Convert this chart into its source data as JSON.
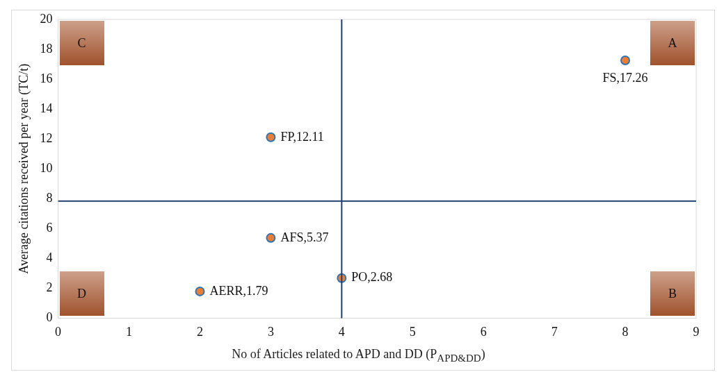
{
  "chart_data": {
    "type": "scatter",
    "xlabel": "No of Articles related to APD and DD (P$_{APD&DD}$)",
    "ylabel": "Average citations received per year (TC/t)",
    "x": [
      2,
      3,
      3,
      4,
      8
    ],
    "values": [
      1.79,
      5.37,
      12.11,
      2.68,
      17.26
    ],
    "value_labels": [
      "AERR,1.79",
      "AFS,5.37",
      "FP,12.11",
      "PO,2.68",
      "FS,17.26"
    ],
    "color": "#ed7d31",
    "marker": "circle",
    "xlim": [
      0,
      9
    ],
    "xticks": [
      0,
      1,
      2,
      3,
      4,
      5,
      6,
      7,
      8,
      9
    ],
    "ylim": [
      0,
      20
    ],
    "yticks": [
      0,
      2,
      4,
      6,
      8,
      10,
      12,
      14,
      16,
      18,
      20
    ],
    "ref_lines": [
      {
        "axis": "x",
        "value": 4,
        "color": "#1f3f6e"
      },
      {
        "axis": "y",
        "value": 7.84,
        "color": "#1f3f6e"
      }
    ],
    "annotations": [
      "A",
      "B",
      "C",
      "D"
    ],
    "grid": false,
    "legend": false
  }
}
